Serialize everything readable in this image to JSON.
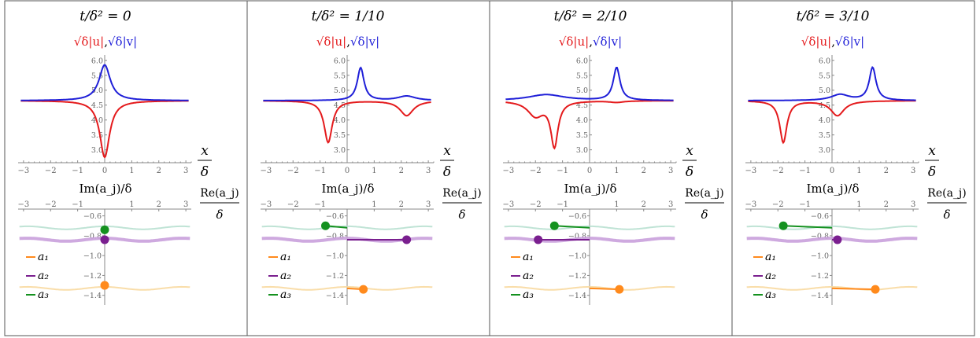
{
  "chart_data": [
    {
      "type": "line",
      "title": "t/δ² = 0",
      "subtitle_u": "√δ|u|",
      "subtitle_v": "√δ|v|",
      "xlabel": "x/δ",
      "xlim": [
        -3.2,
        3.2
      ],
      "ylim": [
        2.7,
        6.1
      ],
      "xticks": [
        -3,
        -2,
        -1,
        0,
        1,
        2,
        3
      ],
      "yticks": [
        "6.0",
        "5.5",
        "5.0",
        "4.5",
        "4.0",
        "3.5",
        "3.0"
      ],
      "u_dips": [
        {
          "x": 0.0,
          "depth": 1.9,
          "width": 0.22
        }
      ],
      "v_peaks": [
        {
          "x": 0.0,
          "height": 1.2,
          "width": 0.25
        }
      ],
      "baseline": 4.65,
      "phase_xlabel": "Re(a_j)/δ",
      "phase_ylabel": "Im(a_j)/δ",
      "phase_xlim": [
        -3.2,
        3.2
      ],
      "phase_ylim": [
        -1.45,
        -0.5
      ],
      "phase_xticks": [
        -3,
        -2,
        -1,
        1,
        2,
        3
      ],
      "phase_yticks": [
        "-0.6",
        "-0.8",
        "-1.0",
        "-1.2",
        "-1.4"
      ],
      "points": {
        "a1": [
          0.0,
          -1.3
        ],
        "a2": [
          0.0,
          -0.84
        ],
        "a3": [
          0.0,
          -0.74
        ]
      },
      "legend": [
        "a₁",
        "a₂",
        "a₃"
      ]
    },
    {
      "type": "line",
      "title": "t/δ² = 1/10",
      "subtitle_u": "√δ|u|",
      "subtitle_v": "√δ|v|",
      "xlabel": "x/δ",
      "xlim": [
        -3.2,
        3.2
      ],
      "ylim": [
        2.7,
        6.1
      ],
      "xticks": [
        -3,
        -2,
        -1,
        0,
        1,
        2,
        3
      ],
      "yticks": [
        "6.0",
        "5.5",
        "5.0",
        "4.5",
        "4.0",
        "3.5",
        "3.0"
      ],
      "u_dips": [
        {
          "x": -0.7,
          "depth": 1.4,
          "width": 0.18
        },
        {
          "x": 2.2,
          "depth": 0.5,
          "width": 0.3
        }
      ],
      "v_peaks": [
        {
          "x": 0.5,
          "height": 1.1,
          "width": 0.15
        },
        {
          "x": 2.2,
          "height": 0.15,
          "width": 0.4
        }
      ],
      "baseline": 4.65,
      "phase_xlabel": "Re(a_j)/δ",
      "phase_ylabel": "Im(a_j)/δ",
      "phase_xlim": [
        -3.2,
        3.2
      ],
      "phase_ylim": [
        -1.45,
        -0.5
      ],
      "phase_xticks": [
        -3,
        -2,
        -1,
        1,
        2,
        3
      ],
      "phase_yticks": [
        "-0.6",
        "-0.8",
        "-1.0",
        "-1.2",
        "-1.4"
      ],
      "points": {
        "a1": [
          0.6,
          -1.34
        ],
        "a2": [
          2.2,
          -0.84
        ],
        "a3": [
          -0.8,
          -0.7
        ]
      },
      "legend": [
        "a₁",
        "a₂",
        "a₃"
      ]
    },
    {
      "type": "line",
      "title": "t/δ² = 2/10",
      "subtitle_u": "√δ|u|",
      "subtitle_v": "√δ|v|",
      "xlabel": "x/δ",
      "xlim": [
        -3.2,
        3.2
      ],
      "ylim": [
        2.7,
        6.1
      ],
      "xticks": [
        -3,
        -2,
        -1,
        0,
        1,
        2,
        3
      ],
      "yticks": [
        "6.0",
        "5.5",
        "5.0",
        "4.5",
        "4.0",
        "3.5",
        "3.0"
      ],
      "u_dips": [
        {
          "x": -1.3,
          "depth": 1.5,
          "width": 0.16
        },
        {
          "x": -2.0,
          "depth": 0.5,
          "width": 0.35
        },
        {
          "x": 1.0,
          "depth": 0.05,
          "width": 0.3
        }
      ],
      "v_peaks": [
        {
          "x": 1.0,
          "height": 1.1,
          "width": 0.15
        },
        {
          "x": -1.6,
          "height": 0.2,
          "width": 0.8
        }
      ],
      "baseline": 4.65,
      "phase_xlabel": "Re(a_j)/δ",
      "phase_ylabel": "Im(a_j)/δ",
      "phase_xlim": [
        -3.2,
        3.2
      ],
      "phase_ylim": [
        -1.45,
        -0.5
      ],
      "phase_xticks": [
        -3,
        -2,
        -1,
        1,
        2,
        3
      ],
      "phase_yticks": [
        "-0.6",
        "-0.8",
        "-1.0",
        "-1.2",
        "-1.4"
      ],
      "points": {
        "a1": [
          1.1,
          -1.34
        ],
        "a2": [
          -1.9,
          -0.84
        ],
        "a3": [
          -1.3,
          -0.7
        ]
      },
      "legend": [
        "a₁",
        "a₂",
        "a₃"
      ]
    },
    {
      "type": "line",
      "title": "t/δ² = 3/10",
      "subtitle_u": "√δ|u|",
      "subtitle_v": "√δ|v|",
      "xlabel": "x/δ",
      "xlim": [
        -3.2,
        3.2
      ],
      "ylim": [
        2.7,
        6.1
      ],
      "xticks": [
        -3,
        -2,
        -1,
        0,
        1,
        2,
        3
      ],
      "yticks": [
        "6.0",
        "5.5",
        "5.0",
        "4.5",
        "4.0",
        "3.5",
        "3.0"
      ],
      "u_dips": [
        {
          "x": -1.8,
          "depth": 1.4,
          "width": 0.16
        },
        {
          "x": 0.2,
          "depth": 0.5,
          "width": 0.3
        }
      ],
      "v_peaks": [
        {
          "x": 1.5,
          "height": 1.1,
          "width": 0.15
        },
        {
          "x": 0.3,
          "height": 0.2,
          "width": 0.4
        }
      ],
      "baseline": 4.65,
      "phase_xlabel": "Re(a_j)/δ",
      "phase_ylabel": "Im(a_j)/δ",
      "phase_xlim": [
        -3.2,
        3.2
      ],
      "phase_ylim": [
        -1.45,
        -0.5
      ],
      "phase_xticks": [
        -3,
        -2,
        -1,
        1,
        2,
        3
      ],
      "phase_yticks": [
        "-0.6",
        "-0.8",
        "-1.0",
        "-1.2",
        "-1.4"
      ],
      "points": {
        "a1": [
          1.6,
          -1.34
        ],
        "a2": [
          0.2,
          -0.84
        ],
        "a3": [
          -1.8,
          -0.7
        ]
      },
      "legend": [
        "a₁",
        "a₂",
        "a₃"
      ]
    }
  ],
  "colors": {
    "u": "#e41a1c",
    "v": "#1f1fd8",
    "a1": "#ff8a1c",
    "a2": "#7a1f8f",
    "a3": "#14911f",
    "a1_faint": "#f8d9a0",
    "a2_faint": "#c9a0dc",
    "a3_faint": "#b8e0d0",
    "axis": "#888888",
    "border": "#555555"
  }
}
